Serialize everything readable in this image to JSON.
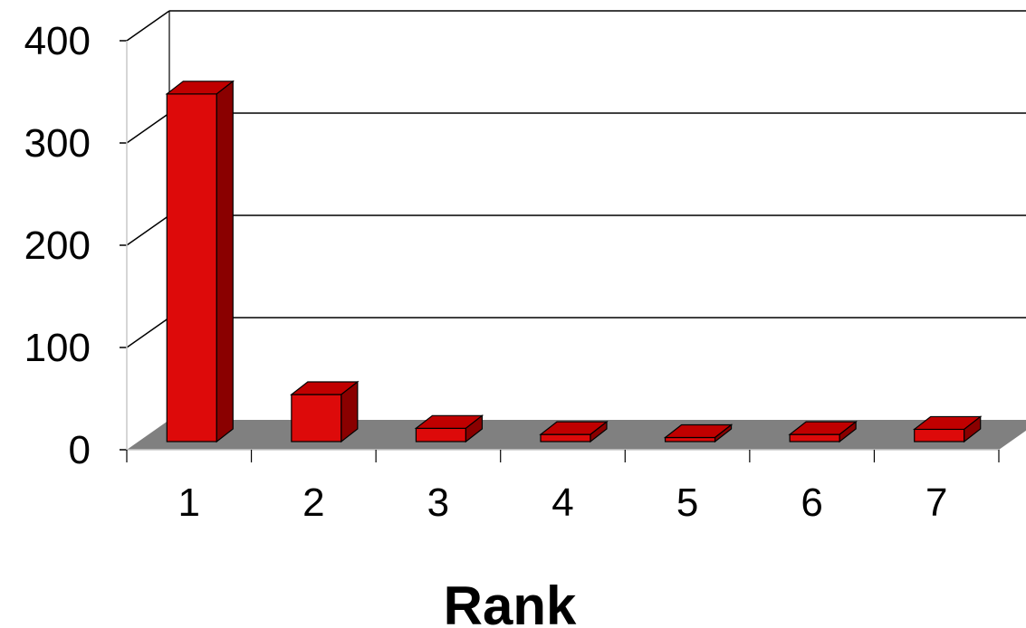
{
  "chart_data": {
    "type": "bar",
    "style": "3d-column",
    "categories": [
      "1",
      "2",
      "3",
      "4",
      "5",
      "6",
      "7"
    ],
    "values": [
      340,
      46,
      13,
      7,
      4,
      7,
      12
    ],
    "ylim": [
      0,
      400
    ],
    "yticks": [
      "0",
      "100",
      "200",
      "300",
      "400"
    ],
    "xlabel": "Rank",
    "ylabel": "",
    "title": "",
    "grid": true,
    "legend": "none",
    "colors": {
      "bar_front": "#dd0a0a",
      "bar_top": "#c00000",
      "bar_side": "#8a0000",
      "floor": "#808080",
      "grid": "#000000"
    }
  }
}
